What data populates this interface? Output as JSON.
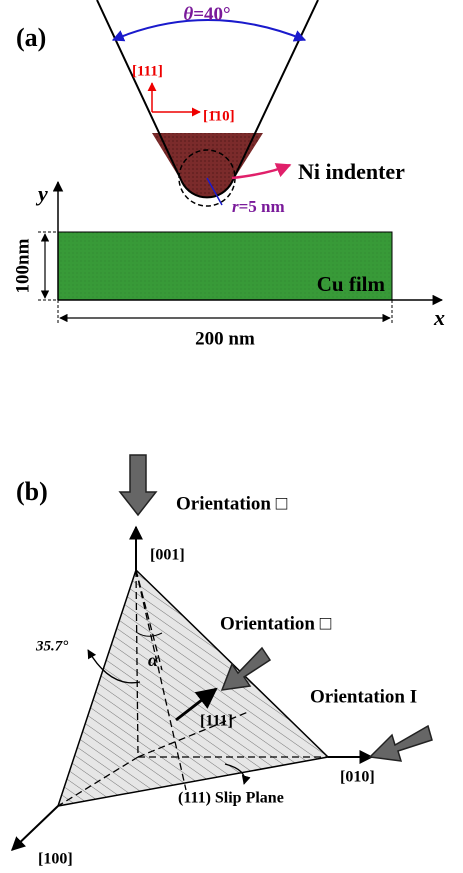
{
  "panel_a": {
    "label": "(a)",
    "angle": {
      "symbol": "θ",
      "text": "=40°"
    },
    "axis_111": "[111]",
    "axis_110": "[1̄10]",
    "indenter_label": "Ni indenter",
    "radius": {
      "symbol": "r",
      "text": "=5 nm"
    },
    "y_axis": "y",
    "height_label": "100nm",
    "film_label": "Cu film",
    "x_axis": "x",
    "width_label": "200 nm"
  },
  "panel_b": {
    "label": "(b)",
    "orientations": [
      "Orientation □",
      "Orientation □",
      "Orientation I"
    ],
    "dir_001": "[001]",
    "alpha": "α",
    "angle": "35.7°",
    "dir_111": "[111]",
    "dir_010": "[010]",
    "plane": "(111) Slip Plane",
    "dir_100": "[100]"
  }
}
